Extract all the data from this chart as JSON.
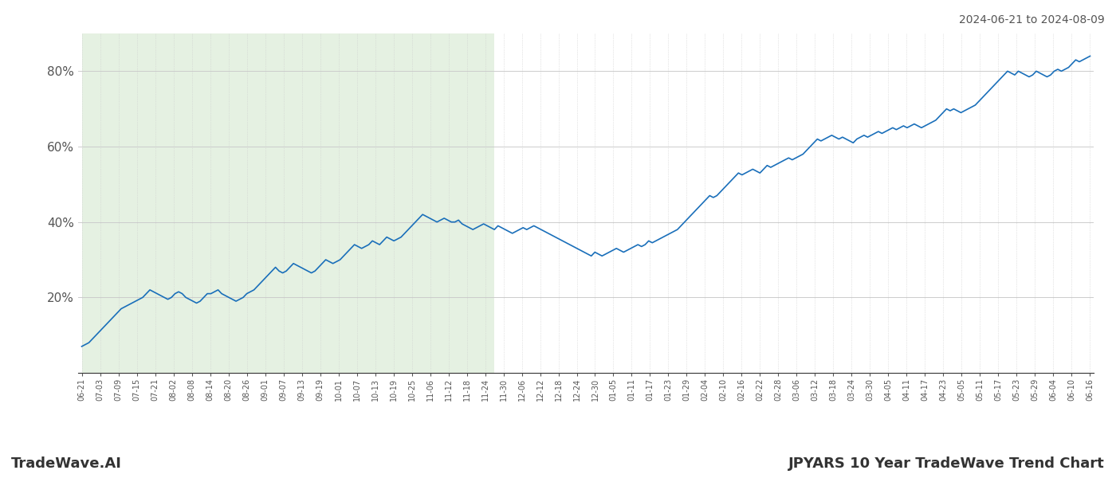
{
  "title_right": "2024-06-21 to 2024-08-09",
  "footer_left": "TradeWave.AI",
  "footer_right": "JPYARS 10 Year TradeWave Trend Chart",
  "line_color": "#1a6fba",
  "line_width": 1.2,
  "background_color": "#ffffff",
  "grid_color": "#cccccc",
  "grid_style_y": "-",
  "grid_style_x": ":",
  "shade_color": "#d4e8d0",
  "shade_alpha": 0.6,
  "ylim": [
    0,
    90
  ],
  "yticks": [
    20,
    40,
    60,
    80
  ],
  "ytick_labels": [
    "20%",
    "40%",
    "60%",
    "80%"
  ],
  "shade_xstart_idx": 0,
  "shade_xend_idx": 115,
  "x_tick_labels": [
    "06-21",
    "07-03",
    "07-09",
    "07-15",
    "07-21",
    "08-02",
    "08-08",
    "08-14",
    "08-20",
    "08-26",
    "09-01",
    "09-07",
    "09-13",
    "09-19",
    "10-01",
    "10-07",
    "10-13",
    "10-19",
    "10-25",
    "11-06",
    "11-12",
    "11-18",
    "11-24",
    "11-30",
    "12-06",
    "12-12",
    "12-18",
    "12-24",
    "12-30",
    "01-05",
    "01-11",
    "01-17",
    "01-23",
    "01-29",
    "02-04",
    "02-10",
    "02-16",
    "02-22",
    "02-28",
    "03-06",
    "03-12",
    "03-18",
    "03-24",
    "03-30",
    "04-05",
    "04-11",
    "04-17",
    "04-23",
    "05-05",
    "05-11",
    "05-17",
    "05-23",
    "05-29",
    "06-04",
    "06-10",
    "06-16"
  ],
  "values": [
    7,
    7.5,
    8,
    9,
    10,
    11,
    12,
    13,
    14,
    15,
    16,
    17,
    17.5,
    18,
    18.5,
    19,
    19.5,
    20,
    21,
    22,
    21.5,
    21,
    20.5,
    20,
    19.5,
    20,
    21,
    21.5,
    21,
    20,
    19.5,
    19,
    18.5,
    19,
    20,
    21,
    21,
    21.5,
    22,
    21,
    20.5,
    20,
    19.5,
    19,
    19.5,
    20,
    21,
    21.5,
    22,
    23,
    24,
    25,
    26,
    27,
    28,
    27,
    26.5,
    27,
    28,
    29,
    28.5,
    28,
    27.5,
    27,
    26.5,
    27,
    28,
    29,
    30,
    29.5,
    29,
    29.5,
    30,
    31,
    32,
    33,
    34,
    33.5,
    33,
    33.5,
    34,
    35,
    34.5,
    34,
    35,
    36,
    35.5,
    35,
    35.5,
    36,
    37,
    38,
    39,
    40,
    41,
    42,
    41.5,
    41,
    40.5,
    40,
    40.5,
    41,
    40.5,
    40,
    40,
    40.5,
    39.5,
    39,
    38.5,
    38,
    38.5,
    39,
    39.5,
    39,
    38.5,
    38,
    39,
    38.5,
    38,
    37.5,
    37,
    37.5,
    38,
    38.5,
    38,
    38.5,
    39,
    38.5,
    38,
    37.5,
    37,
    36.5,
    36,
    35.5,
    35,
    34.5,
    34,
    33.5,
    33,
    32.5,
    32,
    31.5,
    31,
    32,
    31.5,
    31,
    31.5,
    32,
    32.5,
    33,
    32.5,
    32,
    32.5,
    33,
    33.5,
    34,
    33.5,
    34,
    35,
    34.5,
    35,
    35.5,
    36,
    36.5,
    37,
    37.5,
    38,
    39,
    40,
    41,
    42,
    43,
    44,
    45,
    46,
    47,
    46.5,
    47,
    48,
    49,
    50,
    51,
    52,
    53,
    52.5,
    53,
    53.5,
    54,
    53.5,
    53,
    54,
    55,
    54.5,
    55,
    55.5,
    56,
    56.5,
    57,
    56.5,
    57,
    57.5,
    58,
    59,
    60,
    61,
    62,
    61.5,
    62,
    62.5,
    63,
    62.5,
    62,
    62.5,
    62,
    61.5,
    61,
    62,
    62.5,
    63,
    62.5,
    63,
    63.5,
    64,
    63.5,
    64,
    64.5,
    65,
    64.5,
    65,
    65.5,
    65,
    65.5,
    66,
    65.5,
    65,
    65.5,
    66,
    66.5,
    67,
    68,
    69,
    70,
    69.5,
    70,
    69.5,
    69,
    69.5,
    70,
    70.5,
    71,
    72,
    73,
    74,
    75,
    76,
    77,
    78,
    79,
    80,
    79.5,
    79,
    80,
    79.5,
    79,
    78.5,
    79,
    80,
    79.5,
    79,
    78.5,
    79,
    80,
    80.5,
    80,
    80.5,
    81,
    82,
    83,
    82.5,
    83,
    83.5,
    84
  ]
}
